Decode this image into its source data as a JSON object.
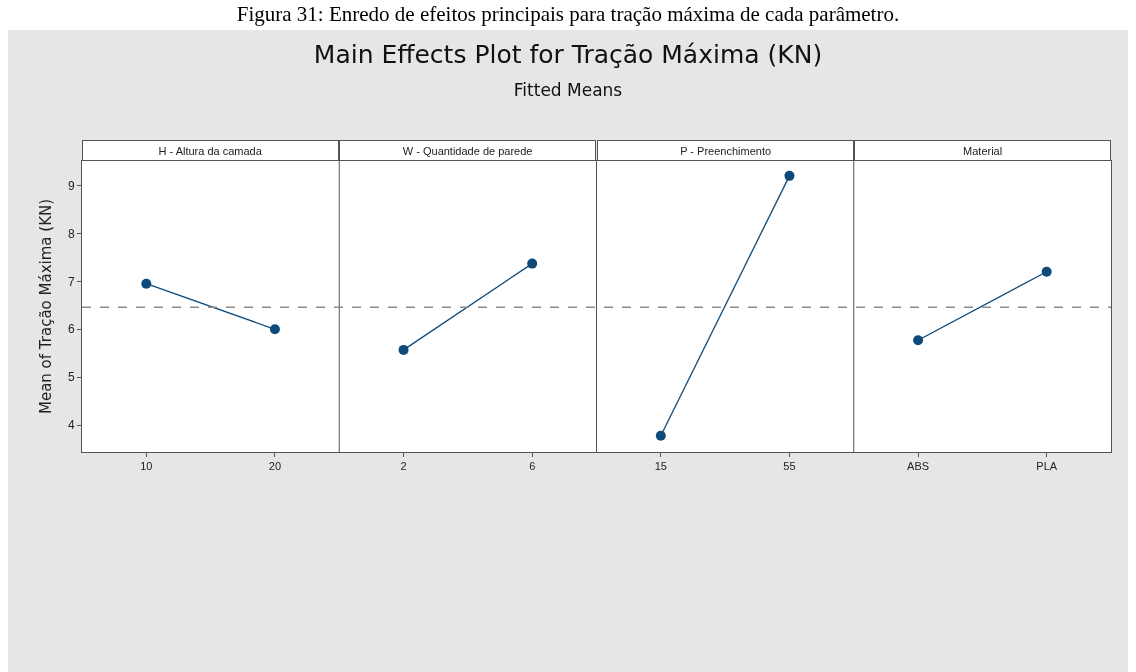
{
  "chart_data": {
    "type": "line",
    "title": "Main Effects Plot for Tração Máxima (KN)",
    "subtitle": "Fitted Means",
    "annotations": [
      "Figura 31: Enredo de efeitos principais para tração máxima de cada parâmetro.",
      "H - Altura da camada",
      "W - Quantidade de parede",
      "P - Preenchimento",
      "Material"
    ],
    "ylabel": "Mean of Tração Máxima (KN)",
    "categories": [
      "10",
      "20",
      "2",
      "6",
      "15",
      "55",
      "ABS",
      "PLA"
    ],
    "series": [
      {
        "color": "#0d4a7a",
        "values": [
          6.95,
          6.0,
          null,
          null,
          null,
          null,
          null,
          null
        ]
      },
      {
        "color": "#0d4a7a",
        "values": [
          null,
          null,
          5.57,
          7.37,
          null,
          null,
          null,
          null
        ]
      },
      {
        "color": "#0d4a7a",
        "values": [
          null,
          null,
          null,
          null,
          3.78,
          9.2,
          null,
          null
        ]
      },
      {
        "color": "#0d4a7a",
        "values": [
          null,
          null,
          null,
          null,
          null,
          null,
          5.77,
          7.2
        ]
      }
    ],
    "marker": "circle",
    "ylim": [
      3.44,
      9.51
    ],
    "yticks": [
      4,
      5,
      6,
      7,
      8,
      9
    ],
    "ref_lines": [
      {
        "axis": "y",
        "value": 6.46,
        "color": "#8c8c8c",
        "line_style": "dashed"
      }
    ]
  }
}
